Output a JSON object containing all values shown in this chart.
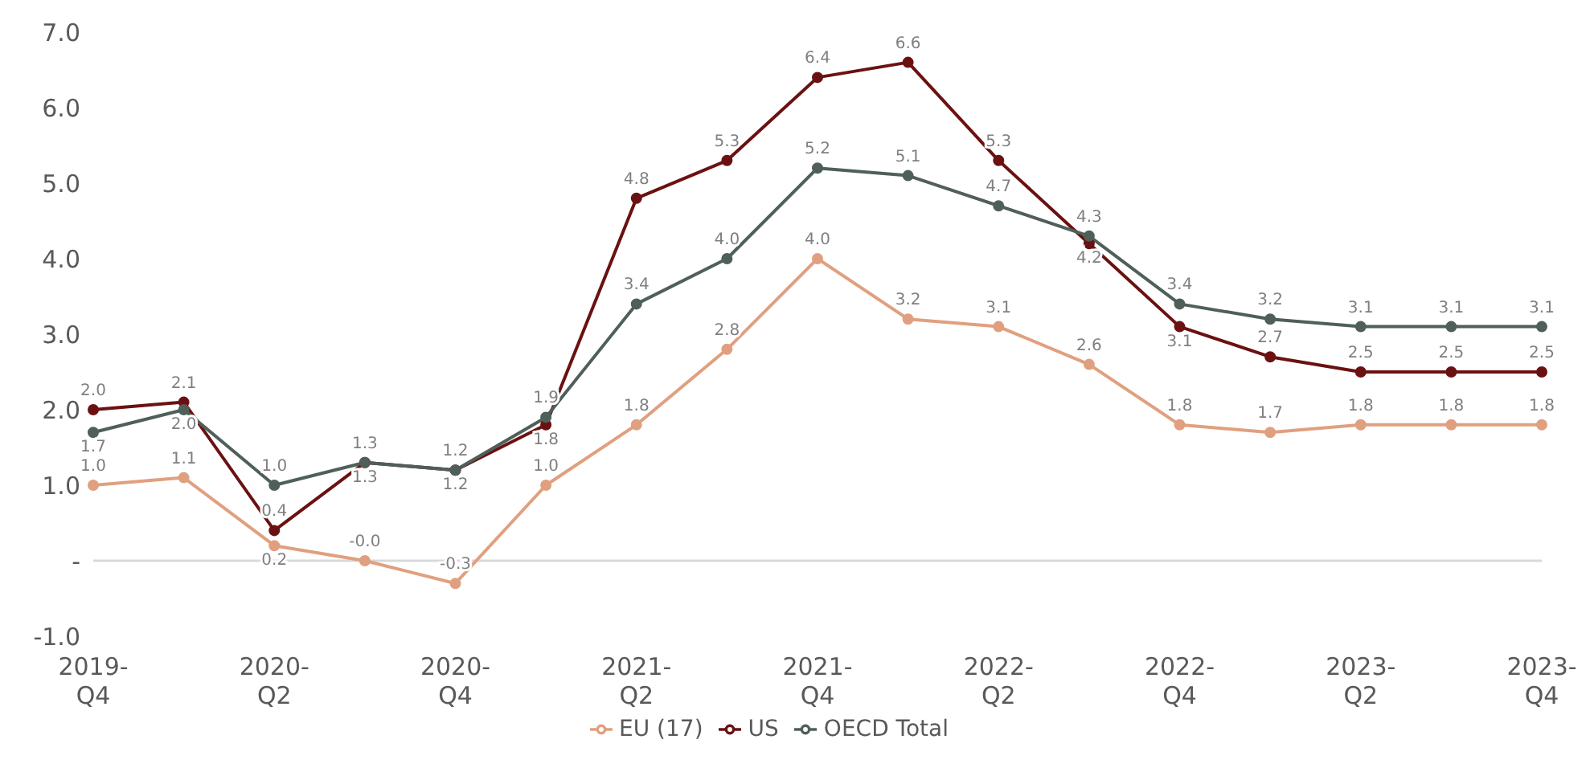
{
  "chart_data": {
    "type": "line",
    "categories": [
      "2019-\nQ4",
      null,
      "2020-\nQ2",
      null,
      "2020-\nQ4",
      null,
      "2021-\nQ2",
      null,
      "2021-\nQ4",
      null,
      "2022-\nQ2",
      null,
      "2022-\nQ4",
      null,
      "2023-\nQ2",
      null,
      "2023-\nQ4"
    ],
    "series": [
      {
        "name": "EU (17)",
        "color": "#e0a07f",
        "values": [
          1.0,
          1.1,
          0.2,
          0.0,
          -0.3,
          1.0,
          1.8,
          2.8,
          4.0,
          3.2,
          3.1,
          2.6,
          1.8,
          1.7,
          1.8,
          1.8,
          1.8
        ],
        "value_labels": [
          "1.0",
          "1.1",
          "0.2",
          "-0.0",
          "-0.3",
          "1.0",
          "1.8",
          "2.8",
          "4.0",
          "3.2",
          "3.1",
          "2.6",
          "1.8",
          "1.7",
          "1.8",
          "1.8",
          "1.8"
        ]
      },
      {
        "name": "US",
        "color": "#6b1111",
        "values": [
          2.0,
          2.1,
          0.4,
          1.3,
          1.2,
          1.8,
          4.8,
          5.3,
          6.4,
          6.6,
          5.3,
          4.2,
          3.1,
          2.7,
          2.5,
          2.5,
          2.5
        ],
        "value_labels": [
          "2.0",
          "2.1",
          "0.4",
          "1.3",
          "1.2",
          "1.8",
          "4.8",
          "5.3",
          "6.4",
          "6.6",
          "5.3",
          "4.2",
          "3.1",
          "2.7",
          "2.5",
          "2.5",
          "2.5"
        ]
      },
      {
        "name": "OECD Total",
        "color": "#4f5f59",
        "values": [
          1.7,
          2.0,
          1.0,
          1.3,
          1.2,
          1.9,
          3.4,
          4.0,
          5.2,
          5.1,
          4.7,
          4.3,
          3.4,
          3.2,
          3.1,
          3.1,
          3.1
        ],
        "value_labels": [
          "1.7",
          "2.0",
          "1.0",
          "1.3",
          "1.2",
          "1.9",
          "3.4",
          "4.0",
          "5.2",
          "5.1",
          "4.7",
          "4.3",
          "3.4",
          "3.2",
          "3.1",
          "3.1",
          "3.1"
        ]
      }
    ],
    "ylim": [
      -1,
      7
    ],
    "yticks": [
      {
        "value": -1,
        "label": "-1.0"
      },
      {
        "value": 0,
        "label": "-"
      },
      {
        "value": 1,
        "label": "1.0"
      },
      {
        "value": 2,
        "label": "2.0"
      },
      {
        "value": 3,
        "label": "3.0"
      },
      {
        "value": 4,
        "label": "4.0"
      },
      {
        "value": 5,
        "label": "5.0"
      },
      {
        "value": 6,
        "label": "6.0"
      },
      {
        "value": 7,
        "label": "7.0"
      }
    ],
    "ref_lines": [
      {
        "axis": "y",
        "value": 0,
        "color": "#d9d9d9"
      }
    ],
    "grid": false,
    "legend": "bottom",
    "marker": "circle",
    "line_style": "solid"
  }
}
